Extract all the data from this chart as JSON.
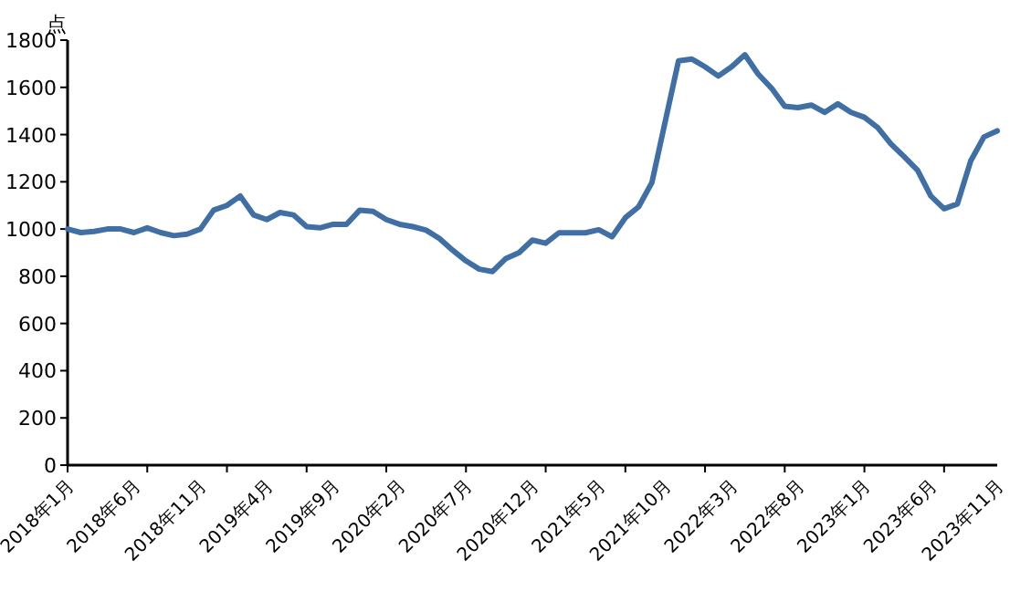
{
  "chart_data": {
    "type": "line",
    "ylabel": "点",
    "categories": [
      "2018年1月",
      null,
      null,
      null,
      null,
      "2018年6月",
      null,
      null,
      null,
      null,
      "2018年11月",
      null,
      null,
      null,
      null,
      "2019年4月",
      null,
      null,
      null,
      null,
      "2019年9月",
      null,
      null,
      null,
      null,
      "2020年2月",
      null,
      null,
      null,
      null,
      "2020年7月",
      null,
      null,
      null,
      null,
      "2020年12月",
      null,
      null,
      null,
      null,
      "2021年5月",
      null,
      null,
      null,
      null,
      "2021年10月",
      null,
      null,
      null,
      null,
      "2022年3月",
      null,
      null,
      null,
      null,
      "2022年8月",
      null,
      null,
      null,
      null,
      "2023年1月",
      null,
      null,
      null,
      null,
      "2023年6月",
      null,
      null,
      null,
      null,
      "2023年11月"
    ],
    "series": [
      {
        "color": "#3f6fa5",
        "values": [
          1000,
          985,
          990,
          1000,
          1000,
          985,
          1005,
          985,
          972,
          978,
          1000,
          1080,
          1100,
          1140,
          1060,
          1040,
          1070,
          1060,
          1010,
          1005,
          1020,
          1020,
          1080,
          1075,
          1040,
          1020,
          1010,
          995,
          960,
          910,
          865,
          830,
          820,
          875,
          900,
          953,
          940,
          984,
          984,
          984,
          997,
          967,
          1048,
          1094,
          1197,
          1455,
          1712,
          1720,
          1687,
          1648,
          1687,
          1738,
          1656,
          1597,
          1520,
          1514,
          1525,
          1494,
          1530,
          1494,
          1473,
          1430,
          1360,
          1306,
          1249,
          1140,
          1086,
          1106,
          1288,
          1390,
          1416
        ]
      }
    ],
    "ylim": [
      0,
      1800
    ],
    "yticks": [
      0,
      200,
      400,
      600,
      800,
      1000,
      1200,
      1400,
      1600,
      1800
    ],
    "grid": false,
    "marker": "none",
    "line_style": "solid"
  }
}
